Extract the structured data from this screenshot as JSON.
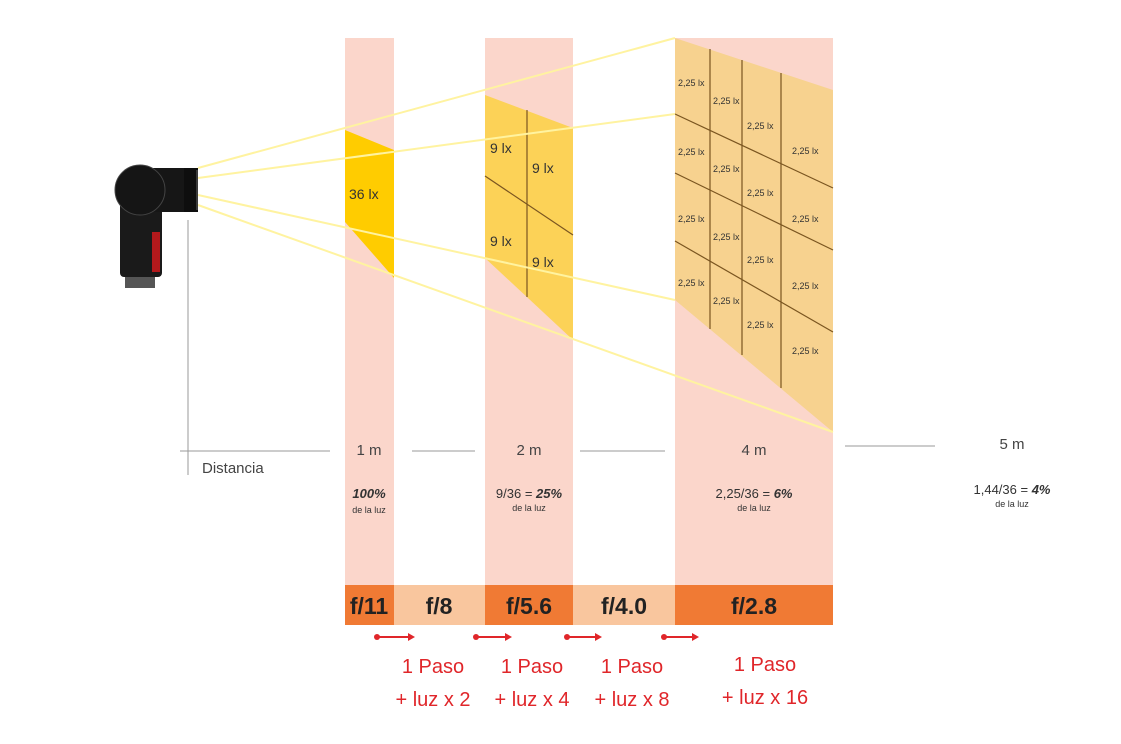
{
  "colors": {
    "pink_band": "#fbd6cb",
    "peach_bar": "#f9c69e",
    "orange_bar": "#f07a34",
    "yellow_1m": "#ffcc00",
    "yellow_2m": "#fcd257",
    "yellow_4m": "#f7d28f",
    "beam_line": "#fff3a0",
    "grid_line": "#7a5520",
    "red_text": "#e0262a"
  },
  "icons": [
    "flash-unit-icon",
    "arrow-right-icon"
  ],
  "distance_label": "Distancia",
  "panels": {
    "one_m": {
      "lux": "36 lx"
    },
    "two_m": {
      "lux": [
        "9 lx",
        "9 lx",
        "9 lx",
        "9 lx"
      ]
    },
    "four_m": {
      "lux": "2,25 lx"
    }
  },
  "distances": [
    "1 m",
    "2 m",
    "4 m",
    "5 m"
  ],
  "percentages": [
    {
      "prefix": "",
      "value": "100%",
      "sub": "de la luz"
    },
    {
      "prefix": "9/36 = ",
      "value": "25%",
      "sub": "de la luz"
    },
    {
      "prefix": "2,25/36 = ",
      "value": "6%",
      "sub": "de la luz"
    },
    {
      "prefix": "1,44/36 = ",
      "value": "4%",
      "sub": "de la luz"
    }
  ],
  "fstops": [
    "f/11",
    "f/8",
    "f/5.6",
    "f/4.0",
    "f/2.8"
  ],
  "steps": [
    {
      "line1": "1 Paso",
      "line2": "+ luz x 2"
    },
    {
      "line1": "1 Paso",
      "line2": "+ luz x 4"
    },
    {
      "line1": "1 Paso",
      "line2": "+ luz x 8"
    },
    {
      "line1": "1 Paso",
      "line2": "+ luz x 16"
    }
  ]
}
